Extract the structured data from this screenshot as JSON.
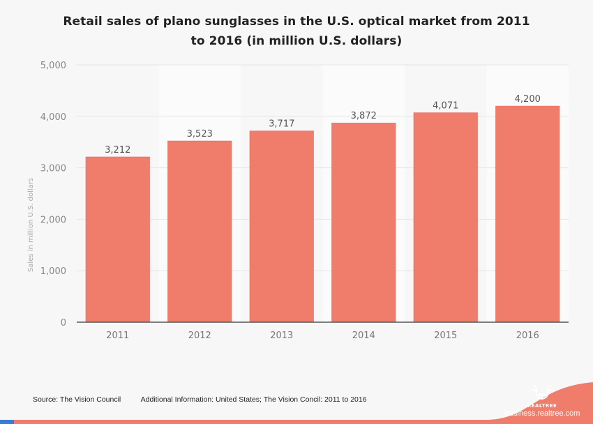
{
  "chart_data": {
    "type": "bar",
    "title": "Retail sales of plano sunglasses in the U.S. optical market from 2011 to 2016 (in million U.S. dollars)",
    "title_lines": [
      "Retail sales of plano sunglasses in the U.S. optical market from 2011",
      "to 2016 (in million U.S. dollars)"
    ],
    "categories": [
      "2011",
      "2012",
      "2013",
      "2014",
      "2015",
      "2016"
    ],
    "values": [
      3212,
      3523,
      3717,
      3872,
      4071,
      4200
    ],
    "value_labels": [
      "3,212",
      "3,523",
      "3,717",
      "3,872",
      "4,071",
      "4,200"
    ],
    "xlabel": "",
    "ylabel": "Sales in million U.S. dollars",
    "ylim": [
      0,
      5000
    ],
    "yticks": [
      0,
      1000,
      2000,
      3000,
      4000,
      5000
    ],
    "ytick_labels": [
      "0",
      "1,000",
      "2,000",
      "3,000",
      "4,000",
      "5,000"
    ],
    "grid": true,
    "legend": "none",
    "colors": {
      "bar": "#f07c6c",
      "bar_edge": "#e87060",
      "axis": "#555555",
      "grid": "#e6e6e6",
      "band": "#fbfbfb"
    }
  },
  "footer": {
    "source": "Source: The Vision Council",
    "additional_info": "Additional Information: United States; The Vision Concil: 2011 to 2016"
  },
  "brand": {
    "logo_name": "REALTREE",
    "website": "Business.realtree.com",
    "accent_color": "#f07c6c"
  }
}
